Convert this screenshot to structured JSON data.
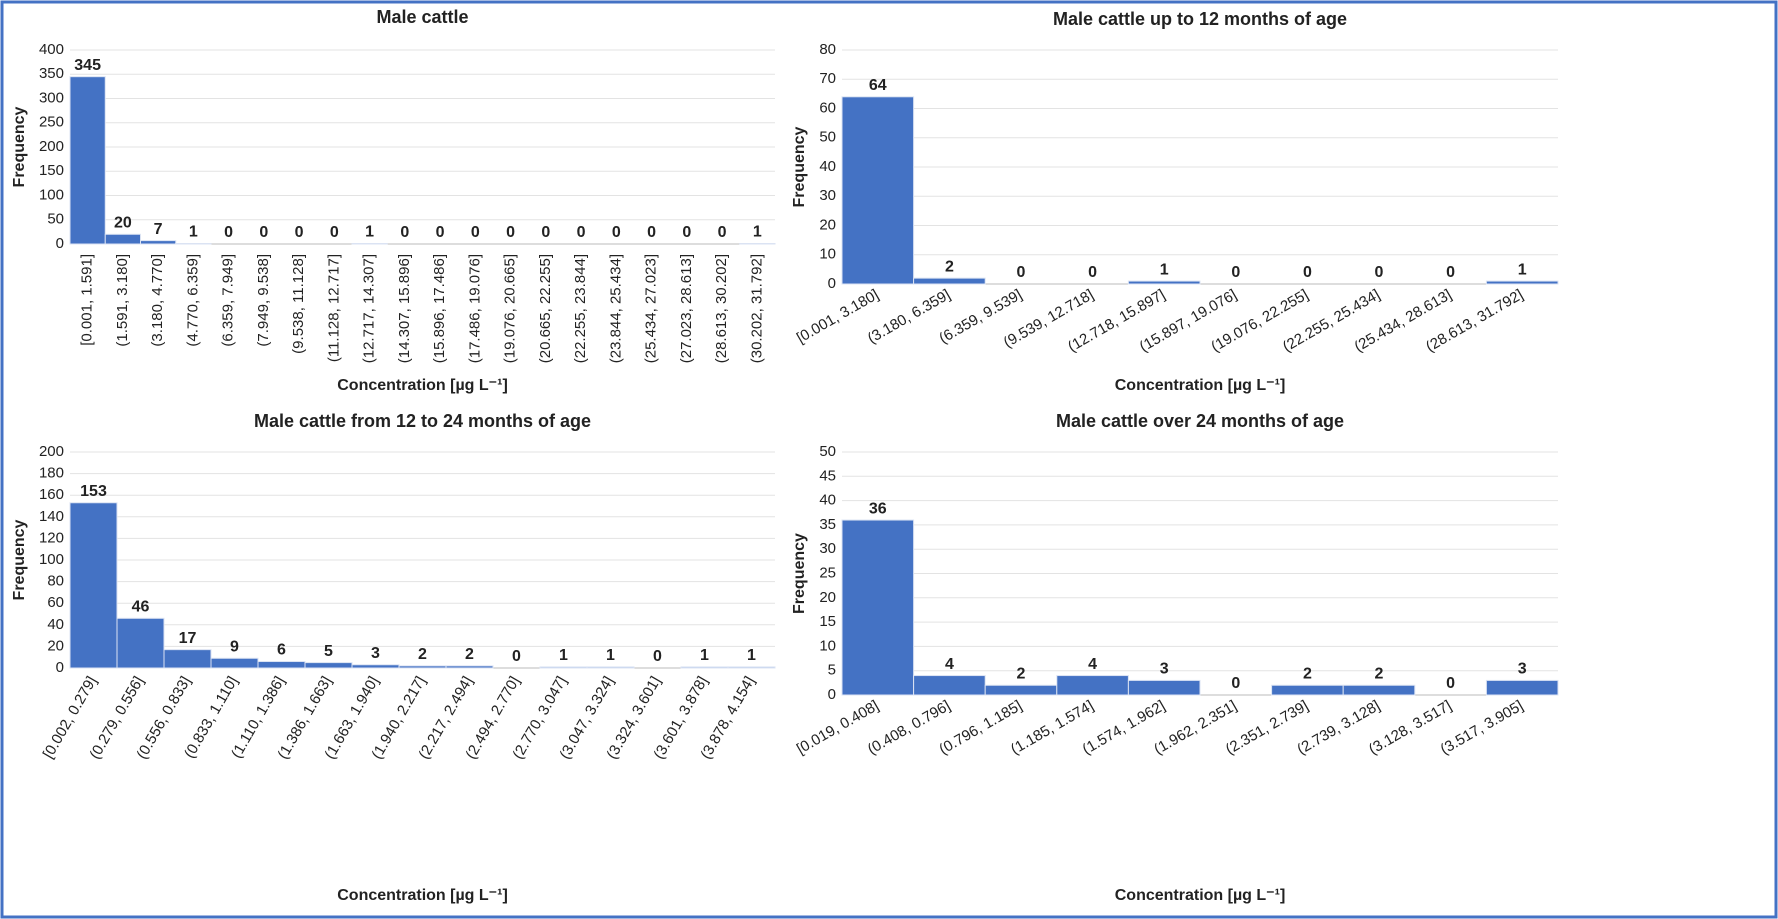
{
  "chart_data": [
    {
      "type": "bar",
      "title": "Male cattle",
      "x_label": "Concentration [µg L⁻¹]",
      "y_label": "Frequency",
      "color": "#4472c4",
      "grid": true,
      "categories": [
        "[0.001, 1.591]",
        "(1.591, 3.180]",
        "(3.180, 4.770]",
        "(4.770, 6.359]",
        "(6.359, 7.949]",
        "(7.949, 9.538]",
        "(9.538, 11.128]",
        "(11.128, 12.717]",
        "(12.717, 14.307]",
        "(14.307, 15.896]",
        "(15.896, 17.486]",
        "(17.486, 19.076]",
        "(19.076, 20.665]",
        "(20.665, 22.255]",
        "(22.255, 23.844]",
        "(23.844, 25.434]",
        "(25.434, 27.023]",
        "(27.023, 28.613]",
        "(28.613, 30.202]",
        "(30.202, 31.792]"
      ],
      "values": [
        345,
        20,
        7,
        1,
        0,
        0,
        0,
        0,
        1,
        0,
        0,
        0,
        0,
        0,
        0,
        0,
        0,
        0,
        0,
        1
      ],
      "ylim": [
        0,
        400
      ],
      "yticks": [
        0,
        50,
        100,
        150,
        200,
        250,
        300,
        350,
        400
      ]
    },
    {
      "type": "bar",
      "title": "Male cattle up to 12 months of age",
      "x_label": "Concentration [µg L⁻¹]",
      "y_label": "Frequency",
      "color": "#4472c4",
      "grid": true,
      "categories": [
        "[0.001, 3.180]",
        "(3.180, 6.359]",
        "(6.359, 9.539]",
        "(9.539, 12.718]",
        "(12.718, 15.897]",
        "(15.897, 19.076]",
        "(19.076, 22.255]",
        "(22.255, 25.434]",
        "(25.434, 28.613]",
        "(28.613, 31.792]"
      ],
      "values": [
        64,
        2,
        0,
        0,
        1,
        0,
        0,
        0,
        0,
        1
      ],
      "ylim": [
        0,
        80
      ],
      "yticks": [
        0,
        10,
        20,
        30,
        40,
        50,
        60,
        70,
        80
      ]
    },
    {
      "type": "bar",
      "title": "Male cattle from 12 to 24 months of age",
      "x_label": "Concentration [µg L⁻¹]",
      "y_label": "Frequency",
      "color": "#4472c4",
      "grid": true,
      "categories": [
        "[0.002, 0.279]",
        "(0.279, 0.556]",
        "(0.556, 0.833]",
        "(0.833, 1.110]",
        "(1.110, 1.386]",
        "(1.386, 1.663]",
        "(1.663, 1.940]",
        "(1.940, 2.217]",
        "(2.217, 2.494]",
        "(2.494, 2.770]",
        "(2.770, 3.047]",
        "(3.047, 3.324]",
        "(3.324, 3.601]",
        "(3.601, 3.878]",
        "(3.878, 4.154]"
      ],
      "values": [
        153,
        46,
        17,
        9,
        6,
        5,
        3,
        2,
        2,
        0,
        1,
        1,
        0,
        1,
        1
      ],
      "ylim": [
        0,
        200
      ],
      "yticks": [
        0,
        20,
        40,
        60,
        80,
        100,
        120,
        140,
        160,
        180,
        200
      ]
    },
    {
      "type": "bar",
      "title": "Male cattle over 24 months of age",
      "x_label": "Concentration [µg L⁻¹]",
      "y_label": "Frequency",
      "color": "#4472c4",
      "grid": true,
      "categories": [
        "[0.019, 0.408]",
        "(0.408, 0.796]",
        "(0.796, 1.185]",
        "(1.185, 1.574]",
        "(1.574, 1.962]",
        "(1.962, 2.351]",
        "(2.351, 2.739]",
        "(2.739, 3.128]",
        "(3.128, 3.517]",
        "(3.517, 3.905]"
      ],
      "values": [
        36,
        4,
        2,
        4,
        3,
        0,
        2,
        2,
        0,
        3
      ],
      "ylim": [
        0,
        50
      ],
      "yticks": [
        0,
        5,
        10,
        15,
        20,
        25,
        30,
        35,
        40,
        45,
        50
      ]
    }
  ]
}
